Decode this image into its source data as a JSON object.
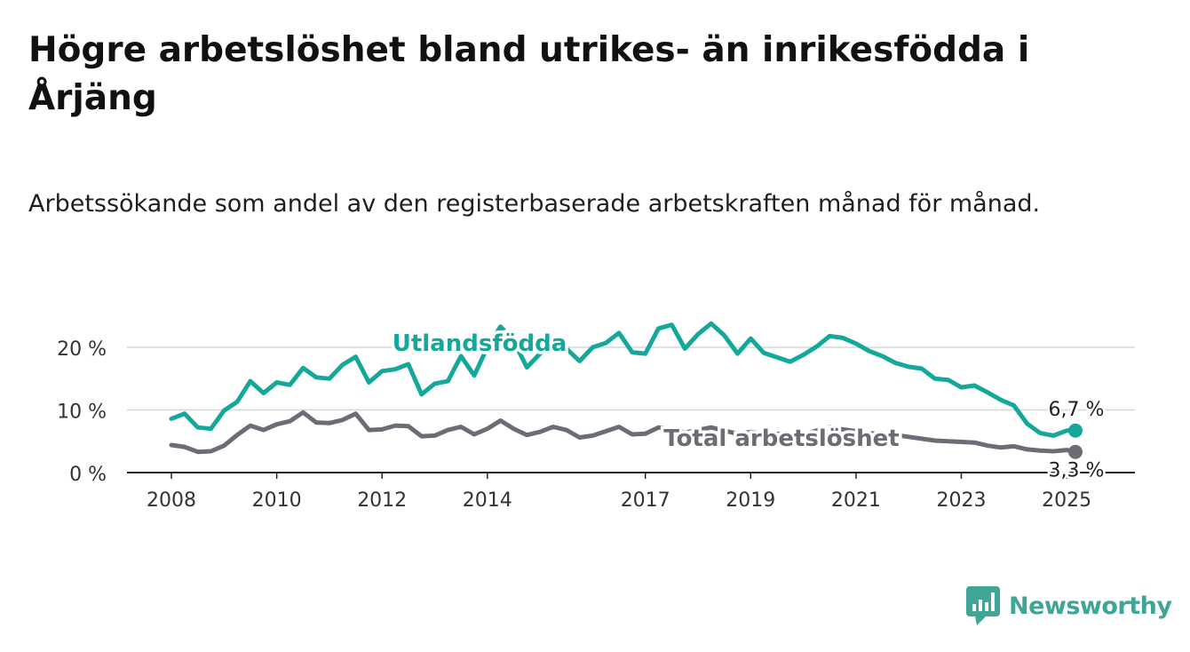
{
  "title": "Högre arbetslöshet bland utrikes- än inrikesfödda i Årjäng",
  "subtitle": "Arbetssökande som andel av den registerbaserade arbetskraften månad för månad.",
  "brand": {
    "name": "Newsworthy",
    "color": "#3fa597",
    "icon": "bar-chart-logo-icon"
  },
  "chart_data": {
    "type": "line",
    "x_ticks": [
      "2008",
      "2010",
      "2012",
      "2014",
      "2017",
      "2019",
      "2021",
      "2023",
      "2025"
    ],
    "y_ticks": [
      "0 %",
      "10 %",
      "20 %"
    ],
    "ylim": [
      0,
      25
    ],
    "grid": true,
    "series": [
      {
        "name": "Utlandsfödda",
        "color": "#14a89a",
        "end_label": "6,7 %",
        "points": [
          [
            "2008-01",
            8.6
          ],
          [
            "2008-04",
            9.4
          ],
          [
            "2008-07",
            7.2
          ],
          [
            "2008-10",
            7.0
          ],
          [
            "2009-01",
            9.9
          ],
          [
            "2009-04",
            11.3
          ],
          [
            "2009-07",
            14.6
          ],
          [
            "2009-10",
            12.7
          ],
          [
            "2010-01",
            14.4
          ],
          [
            "2010-04",
            14.0
          ],
          [
            "2010-07",
            16.7
          ],
          [
            "2010-10",
            15.2
          ],
          [
            "2011-01",
            15.0
          ],
          [
            "2011-04",
            17.2
          ],
          [
            "2011-07",
            18.5
          ],
          [
            "2011-10",
            14.4
          ],
          [
            "2012-01",
            16.2
          ],
          [
            "2012-04",
            16.5
          ],
          [
            "2012-07",
            17.3
          ],
          [
            "2012-10",
            12.5
          ],
          [
            "2013-01",
            14.2
          ],
          [
            "2013-04",
            14.6
          ],
          [
            "2013-07",
            18.6
          ],
          [
            "2013-10",
            15.5
          ],
          [
            "2014-01",
            20.0
          ],
          [
            "2014-04",
            23.3
          ],
          [
            "2014-07",
            21.0
          ],
          [
            "2014-10",
            16.8
          ],
          [
            "2015-01",
            19.0
          ],
          [
            "2015-04",
            20.5
          ],
          [
            "2015-07",
            19.8
          ],
          [
            "2015-10",
            17.8
          ],
          [
            "2016-01",
            20.0
          ],
          [
            "2016-04",
            20.7
          ],
          [
            "2016-07",
            22.3
          ],
          [
            "2016-10",
            19.2
          ],
          [
            "2017-01",
            19.0
          ],
          [
            "2017-04",
            23.0
          ],
          [
            "2017-07",
            23.6
          ],
          [
            "2017-10",
            19.8
          ],
          [
            "2018-01",
            22.1
          ],
          [
            "2018-04",
            23.8
          ],
          [
            "2018-07",
            21.9
          ],
          [
            "2018-10",
            19.0
          ],
          [
            "2019-01",
            21.4
          ],
          [
            "2019-04",
            19.1
          ],
          [
            "2019-07",
            18.4
          ],
          [
            "2019-10",
            17.7
          ],
          [
            "2020-01",
            18.8
          ],
          [
            "2020-04",
            20.1
          ],
          [
            "2020-07",
            21.8
          ],
          [
            "2020-10",
            21.5
          ],
          [
            "2021-01",
            20.6
          ],
          [
            "2021-04",
            19.4
          ],
          [
            "2021-07",
            18.6
          ],
          [
            "2021-10",
            17.5
          ],
          [
            "2022-01",
            16.9
          ],
          [
            "2022-04",
            16.6
          ],
          [
            "2022-07",
            15.0
          ],
          [
            "2022-10",
            14.8
          ],
          [
            "2023-01",
            13.6
          ],
          [
            "2023-04",
            13.9
          ],
          [
            "2023-07",
            12.8
          ],
          [
            "2023-10",
            11.6
          ],
          [
            "2024-01",
            10.7
          ],
          [
            "2024-04",
            7.8
          ],
          [
            "2024-07",
            6.3
          ],
          [
            "2024-10",
            5.9
          ],
          [
            "2025-01",
            6.7
          ],
          [
            "2025-03",
            6.7
          ]
        ]
      },
      {
        "name": "Total arbetslöshet",
        "color": "#6d6c74",
        "end_label": "3,3 %",
        "points": [
          [
            "2008-01",
            4.4
          ],
          [
            "2008-04",
            4.1
          ],
          [
            "2008-07",
            3.3
          ],
          [
            "2008-10",
            3.4
          ],
          [
            "2009-01",
            4.3
          ],
          [
            "2009-04",
            6.0
          ],
          [
            "2009-07",
            7.5
          ],
          [
            "2009-10",
            6.8
          ],
          [
            "2010-01",
            7.7
          ],
          [
            "2010-04",
            8.2
          ],
          [
            "2010-07",
            9.6
          ],
          [
            "2010-10",
            8.0
          ],
          [
            "2011-01",
            7.9
          ],
          [
            "2011-04",
            8.4
          ],
          [
            "2011-07",
            9.4
          ],
          [
            "2011-10",
            6.8
          ],
          [
            "2012-01",
            6.9
          ],
          [
            "2012-04",
            7.5
          ],
          [
            "2012-07",
            7.4
          ],
          [
            "2012-10",
            5.8
          ],
          [
            "2013-01",
            5.9
          ],
          [
            "2013-04",
            6.8
          ],
          [
            "2013-07",
            7.3
          ],
          [
            "2013-10",
            6.1
          ],
          [
            "2014-01",
            7.0
          ],
          [
            "2014-04",
            8.3
          ],
          [
            "2014-07",
            7.0
          ],
          [
            "2014-10",
            6.0
          ],
          [
            "2015-01",
            6.5
          ],
          [
            "2015-04",
            7.3
          ],
          [
            "2015-07",
            6.8
          ],
          [
            "2015-10",
            5.6
          ],
          [
            "2016-01",
            5.9
          ],
          [
            "2016-04",
            6.6
          ],
          [
            "2016-07",
            7.3
          ],
          [
            "2016-10",
            6.1
          ],
          [
            "2017-01",
            6.2
          ],
          [
            "2017-04",
            7.2
          ],
          [
            "2017-07",
            7.0
          ],
          [
            "2017-10",
            6.4
          ],
          [
            "2018-01",
            6.8
          ],
          [
            "2018-04",
            7.2
          ],
          [
            "2018-07",
            6.7
          ],
          [
            "2018-10",
            6.2
          ],
          [
            "2019-01",
            6.5
          ],
          [
            "2019-04",
            6.3
          ],
          [
            "2019-07",
            6.2
          ],
          [
            "2019-10",
            6.0
          ],
          [
            "2020-01",
            6.1
          ],
          [
            "2020-04",
            6.7
          ],
          [
            "2020-07",
            7.3
          ],
          [
            "2020-10",
            6.9
          ],
          [
            "2021-01",
            6.6
          ],
          [
            "2021-04",
            6.3
          ],
          [
            "2021-07",
            6.1
          ],
          [
            "2021-10",
            6.0
          ],
          [
            "2022-01",
            5.7
          ],
          [
            "2022-04",
            5.4
          ],
          [
            "2022-07",
            5.1
          ],
          [
            "2022-10",
            5.0
          ],
          [
            "2023-01",
            4.9
          ],
          [
            "2023-04",
            4.8
          ],
          [
            "2023-07",
            4.3
          ],
          [
            "2023-10",
            4.0
          ],
          [
            "2024-01",
            4.2
          ],
          [
            "2024-04",
            3.7
          ],
          [
            "2024-07",
            3.5
          ],
          [
            "2024-10",
            3.4
          ],
          [
            "2025-01",
            3.6
          ],
          [
            "2025-03",
            3.3
          ]
        ]
      }
    ]
  }
}
